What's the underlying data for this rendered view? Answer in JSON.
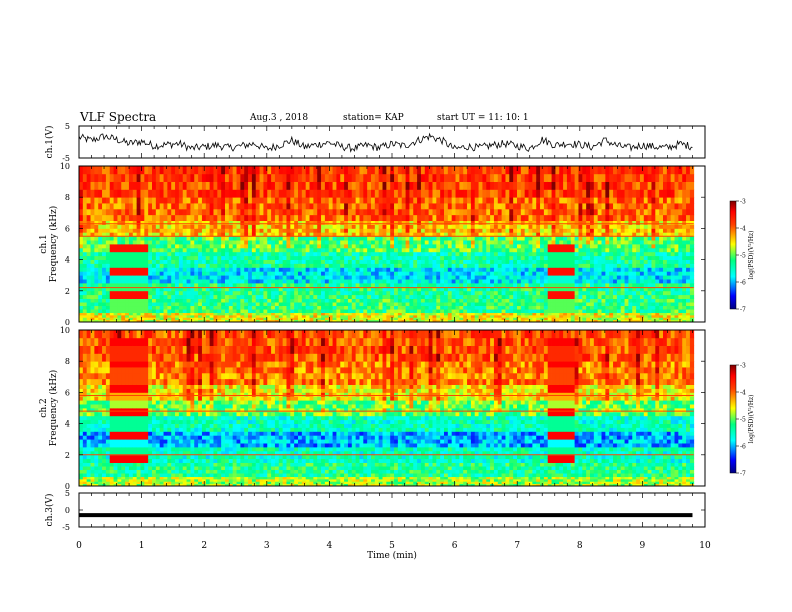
{
  "header": {
    "title": "VLF Spectra",
    "date": "Aug.3 , 2018",
    "station": "station= KAP",
    "start": "start UT = 11: 10: 1"
  },
  "chart_data": [
    {
      "type": "line",
      "panel": "ch1-waveform",
      "ylabel": "ch.1(V)",
      "ylim": [
        -5,
        5
      ],
      "yticks": [
        "5",
        "-5"
      ],
      "x": [
        0,
        0.2,
        0.4,
        0.6,
        0.8,
        1.0,
        1.2,
        1.4,
        1.6,
        1.8,
        2.0,
        2.2,
        2.4,
        2.6,
        2.8,
        3.0,
        3.2,
        3.4,
        3.6,
        3.8,
        4.0,
        4.2,
        4.4,
        4.6,
        4.8,
        5.0,
        5.2,
        5.4,
        5.6,
        5.8,
        6.0,
        6.2,
        6.4,
        6.6,
        6.8,
        7.0,
        7.2,
        7.4,
        7.6,
        7.8,
        8.0,
        8.2,
        8.4,
        8.6,
        8.8,
        9.0,
        9.2,
        9.4,
        9.6,
        9.8
      ],
      "y": [
        1.5,
        0.5,
        1.8,
        0.8,
        -0.5,
        0.2,
        -1.2,
        -0.8,
        -0.5,
        -2.0,
        -1.5,
        -1.0,
        -1.8,
        -1.2,
        -0.5,
        -2.2,
        -1.0,
        0.5,
        -1.6,
        -0.8,
        -0.2,
        -1.5,
        -2.0,
        -1.0,
        -1.8,
        -0.6,
        -1.2,
        0.4,
        1.8,
        0.5,
        -2.2,
        -1.4,
        -1.8,
        -1.0,
        -0.5,
        -1.2,
        -2.0,
        0.8,
        -1.0,
        -0.4,
        -0.8,
        -1.6,
        0.6,
        -1.2,
        -1.8,
        -1.0,
        -1.5,
        -1.8,
        -0.6,
        -1.4
      ]
    },
    {
      "type": "heatmap",
      "panel": "ch1-spectrogram",
      "title": "ch.1",
      "ylabel": "Frequency (kHz)",
      "ylim": [
        0,
        10
      ],
      "yticks": [
        "0",
        "2",
        "4",
        "6",
        "8",
        "10"
      ],
      "colorbar": {
        "label": "log(PSD)(V²/Hz)",
        "range": [
          -7,
          -3
        ],
        "ticks": [
          "-3",
          "-4",
          "-5",
          "-6",
          "-7"
        ]
      },
      "rows": [
        {
          "f_low": 0.0,
          "f_high": 0.6,
          "level": -4.6
        },
        {
          "f_low": 0.6,
          "f_high": 1.5,
          "level": -5.2
        },
        {
          "f_low": 1.5,
          "f_high": 2.5,
          "level": -5.3
        },
        {
          "f_low": 2.5,
          "f_high": 3.5,
          "level": -5.8
        },
        {
          "f_low": 3.5,
          "f_high": 4.5,
          "level": -5.4
        },
        {
          "f_low": 4.5,
          "f_high": 5.5,
          "level": -5.1
        },
        {
          "f_low": 5.5,
          "f_high": 6.5,
          "level": -4.4
        },
        {
          "f_low": 6.5,
          "f_high": 8.0,
          "level": -4.0
        },
        {
          "f_low": 8.0,
          "f_high": 10.0,
          "level": -3.8
        }
      ],
      "bursts": [
        {
          "t_start": 0.45,
          "t_end": 1.05,
          "f_low": 0.5,
          "f_high": 5.0,
          "level": -3.5
        },
        {
          "t_start": 7.45,
          "t_end": 7.9,
          "f_low": 0.5,
          "f_high": 5.0,
          "level": -3.5
        }
      ],
      "lines_khz": [
        2.2,
        5.5,
        6.3
      ]
    },
    {
      "type": "heatmap",
      "panel": "ch2-spectrogram",
      "title": "ch.2",
      "ylabel": "Frequency (kHz)",
      "ylim": [
        0,
        10
      ],
      "yticks": [
        "0",
        "2",
        "4",
        "6",
        "8",
        "10"
      ],
      "colorbar": {
        "label": "log(PSD)(V²/Hz)",
        "range": [
          -7,
          -3
        ],
        "ticks": [
          "-3",
          "-4",
          "-5",
          "-6",
          "-7"
        ]
      },
      "rows": [
        {
          "f_low": 0.0,
          "f_high": 0.6,
          "level": -4.8
        },
        {
          "f_low": 0.6,
          "f_high": 1.5,
          "level": -5.3
        },
        {
          "f_low": 1.5,
          "f_high": 2.5,
          "level": -5.5
        },
        {
          "f_low": 2.5,
          "f_high": 3.5,
          "level": -6.0
        },
        {
          "f_low": 3.5,
          "f_high": 4.5,
          "level": -5.5
        },
        {
          "f_low": 4.5,
          "f_high": 5.5,
          "level": -5.0
        },
        {
          "f_low": 5.5,
          "f_high": 6.5,
          "level": -4.5
        },
        {
          "f_low": 6.5,
          "f_high": 8.0,
          "level": -4.1
        },
        {
          "f_low": 8.0,
          "f_high": 10.0,
          "level": -3.9
        }
      ],
      "bursts": [
        {
          "t_start": 0.45,
          "t_end": 1.05,
          "f_low": 1.5,
          "f_high": 9.5,
          "level": -3.4
        },
        {
          "t_start": 7.45,
          "t_end": 7.9,
          "f_low": 1.5,
          "f_high": 9.5,
          "level": -3.4
        }
      ],
      "lines_khz": [
        2.0,
        4.8,
        5.8
      ]
    },
    {
      "type": "line",
      "panel": "ch3-waveform",
      "ylabel": "ch.3(V)",
      "ylim": [
        -5,
        5
      ],
      "yticks": [
        "5",
        "0",
        "-5"
      ],
      "x": [
        0,
        9.8
      ],
      "y": [
        -1.5,
        -1.5
      ]
    }
  ],
  "x_axis": {
    "label": "Time (min)",
    "ticks": [
      "0",
      "1",
      "2",
      "3",
      "4",
      "5",
      "6",
      "7",
      "8",
      "9",
      "10"
    ],
    "range": [
      0,
      10
    ]
  },
  "colors": {
    "colormap": [
      "#00007f",
      "#0000ff",
      "#0080ff",
      "#00ffff",
      "#00ff80",
      "#80ff00",
      "#ffff00",
      "#ff8000",
      "#ff0000",
      "#7f0000"
    ]
  }
}
